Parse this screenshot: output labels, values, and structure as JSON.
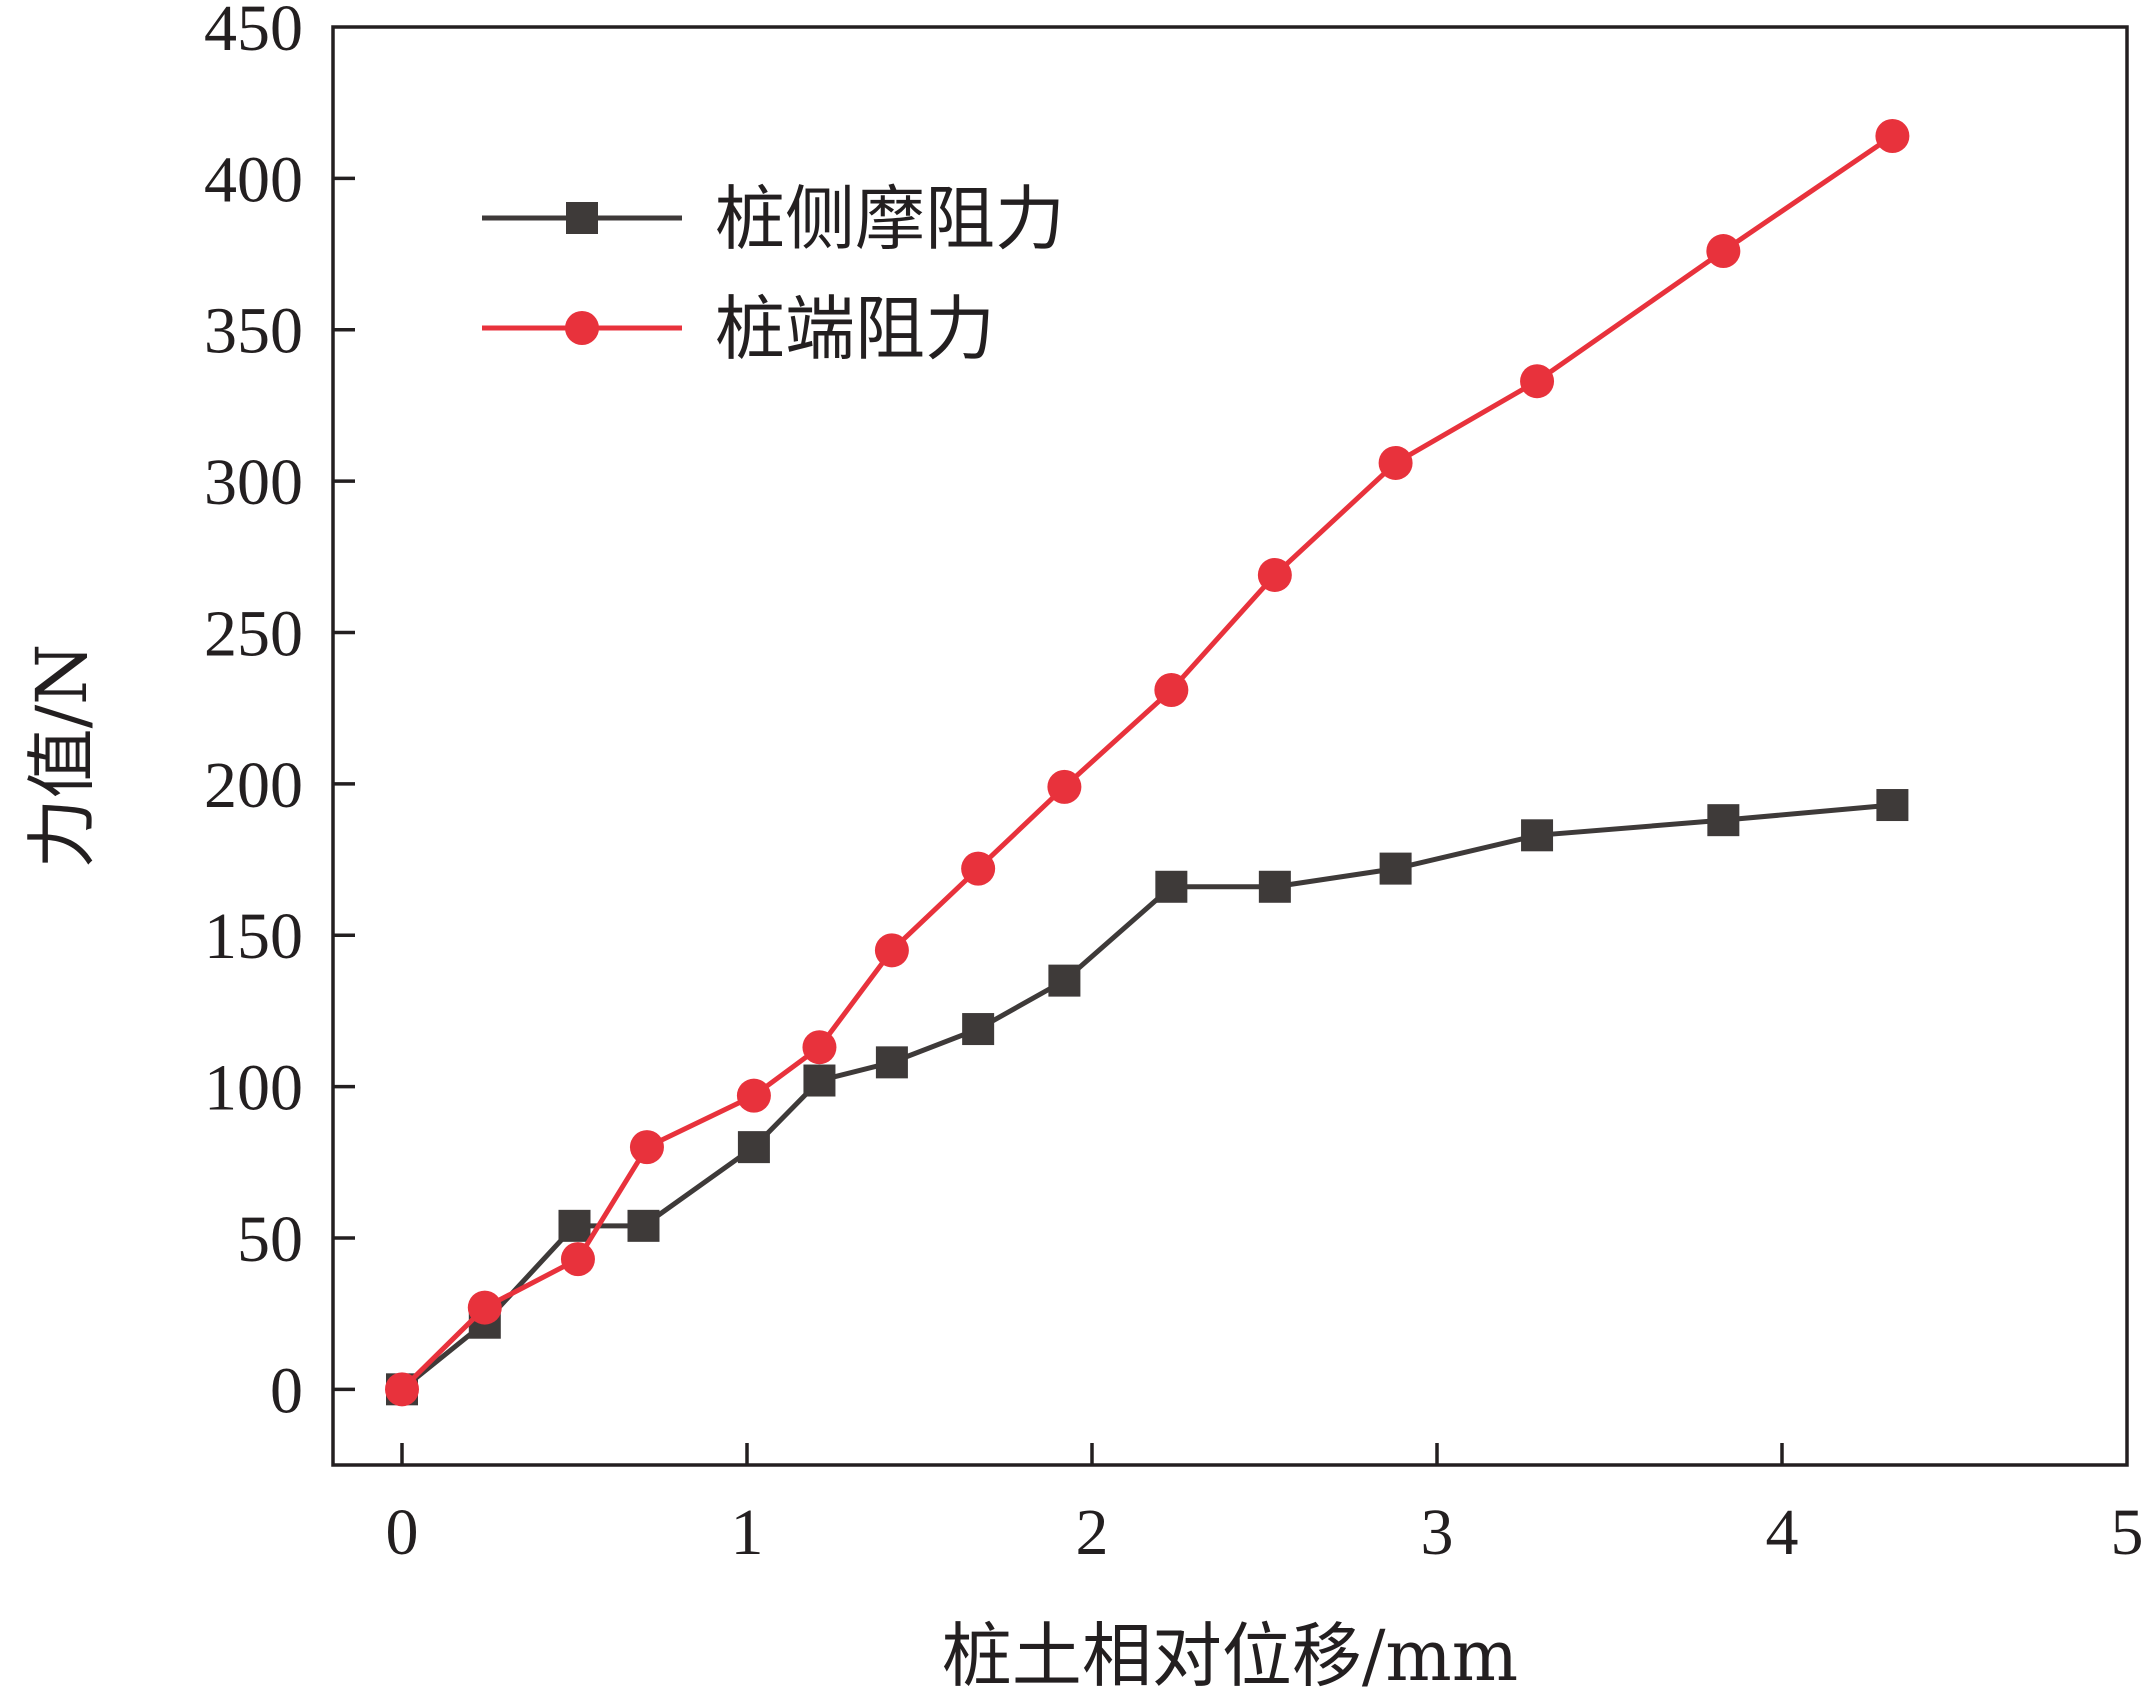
{
  "chart_data": {
    "type": "line",
    "xlabel": "桩土相对位移/mm",
    "ylabel": "力值/N",
    "xlim": [
      -0.2,
      5
    ],
    "ylim": [
      -25,
      450
    ],
    "xticks": [
      0,
      1,
      2,
      3,
      4,
      5
    ],
    "yticks": [
      0,
      50,
      100,
      150,
      200,
      250,
      300,
      350,
      400,
      450
    ],
    "grid": false,
    "legend_position": "top-left",
    "series": [
      {
        "name": "桩侧摩阻力",
        "color": "#3e3a39",
        "marker": "square",
        "x": [
          0,
          0.24,
          0.5,
          0.7,
          1.02,
          1.21,
          1.42,
          1.67,
          1.92,
          2.23,
          2.53,
          2.88,
          3.29,
          3.83,
          4.32
        ],
        "y": [
          0,
          22,
          54,
          54,
          80,
          102,
          108,
          119,
          135,
          166,
          166,
          172,
          183,
          188,
          193
        ]
      },
      {
        "name": "桩端阻力",
        "color": "#e8323c",
        "marker": "circle",
        "x": [
          0,
          0.24,
          0.51,
          0.71,
          1.02,
          1.21,
          1.42,
          1.67,
          1.92,
          2.23,
          2.53,
          2.88,
          3.29,
          3.83,
          4.32
        ],
        "y": [
          0,
          27,
          43,
          80,
          97,
          113,
          145,
          172,
          199,
          231,
          269,
          306,
          333,
          376,
          414
        ]
      }
    ]
  }
}
